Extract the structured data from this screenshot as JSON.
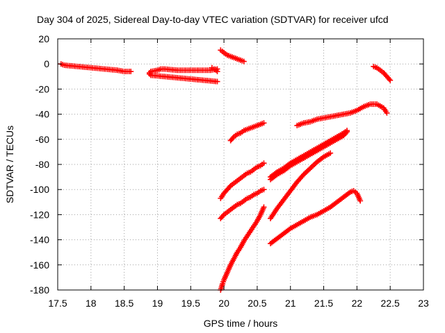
{
  "chart_data": {
    "type": "scatter",
    "title": "Day 304 of 2025, Sidereal Day-to-day VTEC variation (SDTVAR) for receiver ufcd",
    "xlabel": "GPS time / hours",
    "ylabel": "SDTVAR / TECUs",
    "xlim": [
      17.5,
      23
    ],
    "ylim": [
      -180,
      20
    ],
    "xticks": [
      "17.5",
      "18",
      "18.5",
      "19",
      "19.5",
      "20",
      "20.5",
      "21",
      "21.5",
      "22",
      "22.5",
      "23"
    ],
    "yticks": [
      "20",
      "0",
      "-20",
      "-40",
      "-60",
      "-80",
      "-100",
      "-120",
      "-140",
      "-160",
      "-180"
    ],
    "grid": true,
    "marker": "plus",
    "color": "#ff0000",
    "series": [
      {
        "x": [
          17.55,
          17.6,
          17.7,
          17.8,
          17.9,
          18.0,
          18.1,
          18.2,
          18.3,
          18.4,
          18.5,
          18.6
        ],
        "y": [
          0,
          -1,
          -1.5,
          -2,
          -2.5,
          -3,
          -3.5,
          -4,
          -4.5,
          -5,
          -6,
          -6
        ]
      },
      {
        "x": [
          18.88,
          18.9,
          19.0,
          19.05,
          19.1,
          19.2,
          19.3,
          19.4,
          19.5,
          19.6,
          19.7,
          19.8,
          19.9
        ],
        "y": [
          -7,
          -6,
          -5,
          -4,
          -4,
          -4.5,
          -5,
          -5,
          -5,
          -5,
          -5,
          -5,
          -4
        ]
      },
      {
        "x": [
          18.88,
          18.9,
          19.0,
          19.1,
          19.2,
          19.3,
          19.4,
          19.5,
          19.6,
          19.7,
          19.8,
          19.9
        ],
        "y": [
          -8,
          -9,
          -9.5,
          -10,
          -10.5,
          -11,
          -11.5,
          -12,
          -12.5,
          -13,
          -13.5,
          -14
        ]
      },
      {
        "x": [
          19.82,
          19.85,
          19.88,
          19.9
        ],
        "y": [
          -3,
          -4,
          -5,
          -6
        ]
      },
      {
        "x": [
          19.95,
          20.0,
          20.05,
          20.1,
          20.15,
          20.2,
          20.25,
          20.3
        ],
        "y": [
          11,
          9,
          7,
          6,
          5,
          4,
          3,
          2
        ]
      },
      {
        "x": [
          20.1,
          20.15,
          20.2,
          20.25,
          20.3,
          20.35,
          20.4,
          20.45,
          20.5,
          20.55,
          20.6
        ],
        "y": [
          -61,
          -58,
          -56,
          -55,
          -53,
          -52,
          -51,
          -50,
          -49,
          -48,
          -47
        ]
      },
      {
        "x": [
          19.95,
          20.0,
          20.05,
          20.1,
          20.15,
          20.2,
          20.25,
          20.3,
          20.35,
          20.4,
          20.45,
          20.5,
          20.55,
          20.6
        ],
        "y": [
          -107,
          -103,
          -100,
          -97,
          -95,
          -93,
          -91,
          -89,
          -87,
          -86,
          -84,
          -82,
          -81,
          -79
        ]
      },
      {
        "x": [
          19.95,
          20.0,
          20.05,
          20.1,
          20.15,
          20.2,
          20.25,
          20.3,
          20.35,
          20.4,
          20.45,
          20.5,
          20.55,
          20.6
        ],
        "y": [
          -123,
          -120,
          -118,
          -116,
          -114,
          -112,
          -111,
          -109,
          -107,
          -106,
          -104,
          -103,
          -101,
          -100
        ]
      },
      {
        "x": [
          19.95,
          19.98,
          20.0,
          20.05,
          20.1,
          20.15,
          20.2,
          20.25,
          20.3,
          20.35,
          20.4,
          20.45,
          20.5,
          20.55,
          20.6
        ],
        "y": [
          -180,
          -175,
          -172,
          -166,
          -160,
          -155,
          -150,
          -146,
          -141,
          -137,
          -133,
          -129,
          -125,
          -120,
          -114
        ]
      },
      {
        "x": [
          21.1,
          21.2,
          21.3,
          21.4,
          21.5,
          21.6,
          21.7,
          21.8,
          21.9,
          22.0,
          22.1,
          22.2,
          22.3,
          22.4,
          22.45
        ],
        "y": [
          -49,
          -47,
          -46,
          -44,
          -43,
          -42,
          -41,
          -40,
          -39,
          -37,
          -34,
          -32,
          -32,
          -35,
          -39
        ]
      },
      {
        "x": [
          22.25,
          22.3,
          22.35,
          22.4,
          22.45,
          22.5
        ],
        "y": [
          -2,
          -3,
          -5,
          -7,
          -10,
          -13
        ]
      },
      {
        "x": [
          20.7,
          20.8,
          20.9,
          21.0,
          21.1,
          21.2,
          21.3,
          21.4,
          21.5,
          21.6,
          21.7,
          21.8,
          21.85
        ],
        "y": [
          -92,
          -88,
          -85,
          -81,
          -78,
          -75,
          -72,
          -69,
          -66,
          -63,
          -60,
          -57,
          -54
        ]
      },
      {
        "x": [
          20.7,
          20.8,
          20.9,
          21.0,
          21.1,
          21.2,
          21.3,
          21.4,
          21.5,
          21.6,
          21.7,
          21.8,
          21.85
        ],
        "y": [
          -90,
          -86,
          -83,
          -79,
          -76,
          -73,
          -70,
          -67,
          -64,
          -61,
          -58,
          -55,
          -53
        ]
      },
      {
        "x": [
          20.7,
          20.8,
          20.9,
          21.0,
          21.1,
          21.2,
          21.3,
          21.4,
          21.5,
          21.6
        ],
        "y": [
          -123,
          -115,
          -108,
          -101,
          -94,
          -88,
          -83,
          -78,
          -74,
          -71
        ]
      },
      {
        "x": [
          20.7,
          20.8,
          20.9,
          21.0,
          21.1,
          21.2,
          21.3,
          21.4,
          21.5,
          21.6,
          21.7,
          21.8,
          21.9,
          21.95,
          22.0,
          22.05
        ],
        "y": [
          -143,
          -139,
          -135,
          -131,
          -128,
          -125,
          -122,
          -120,
          -117,
          -114,
          -110,
          -106,
          -102,
          -101,
          -103,
          -109
        ]
      }
    ]
  }
}
